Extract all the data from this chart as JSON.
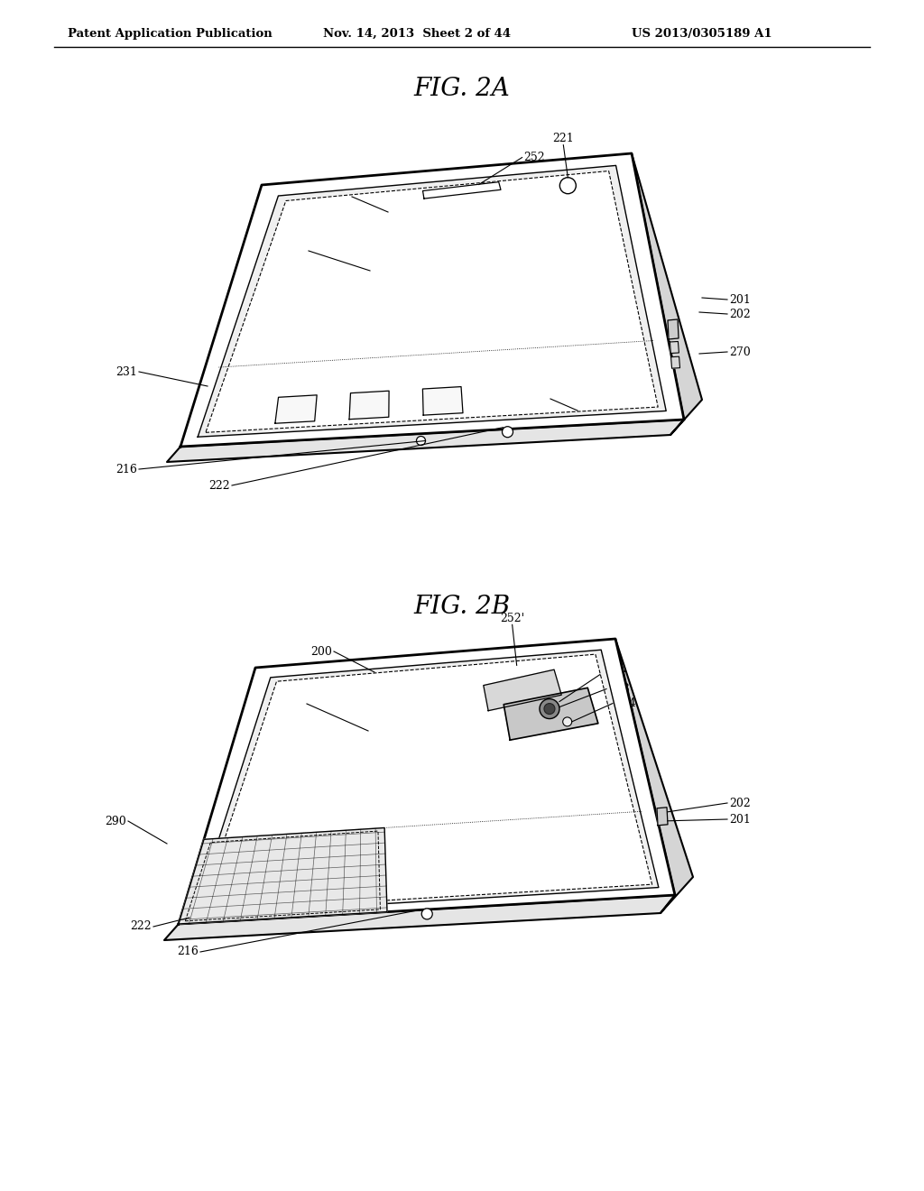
{
  "background_color": "#ffffff",
  "header_left": "Patent Application Publication",
  "header_mid": "Nov. 14, 2013  Sheet 2 of 44",
  "header_right": "US 2013/0305189 A1",
  "fig2a_title": "FIG. 2A",
  "fig2b_title": "FIG. 2B",
  "line_color": "#000000",
  "label_fontsize": 9,
  "header_fontsize": 9.5,
  "title_fontsize": 20
}
